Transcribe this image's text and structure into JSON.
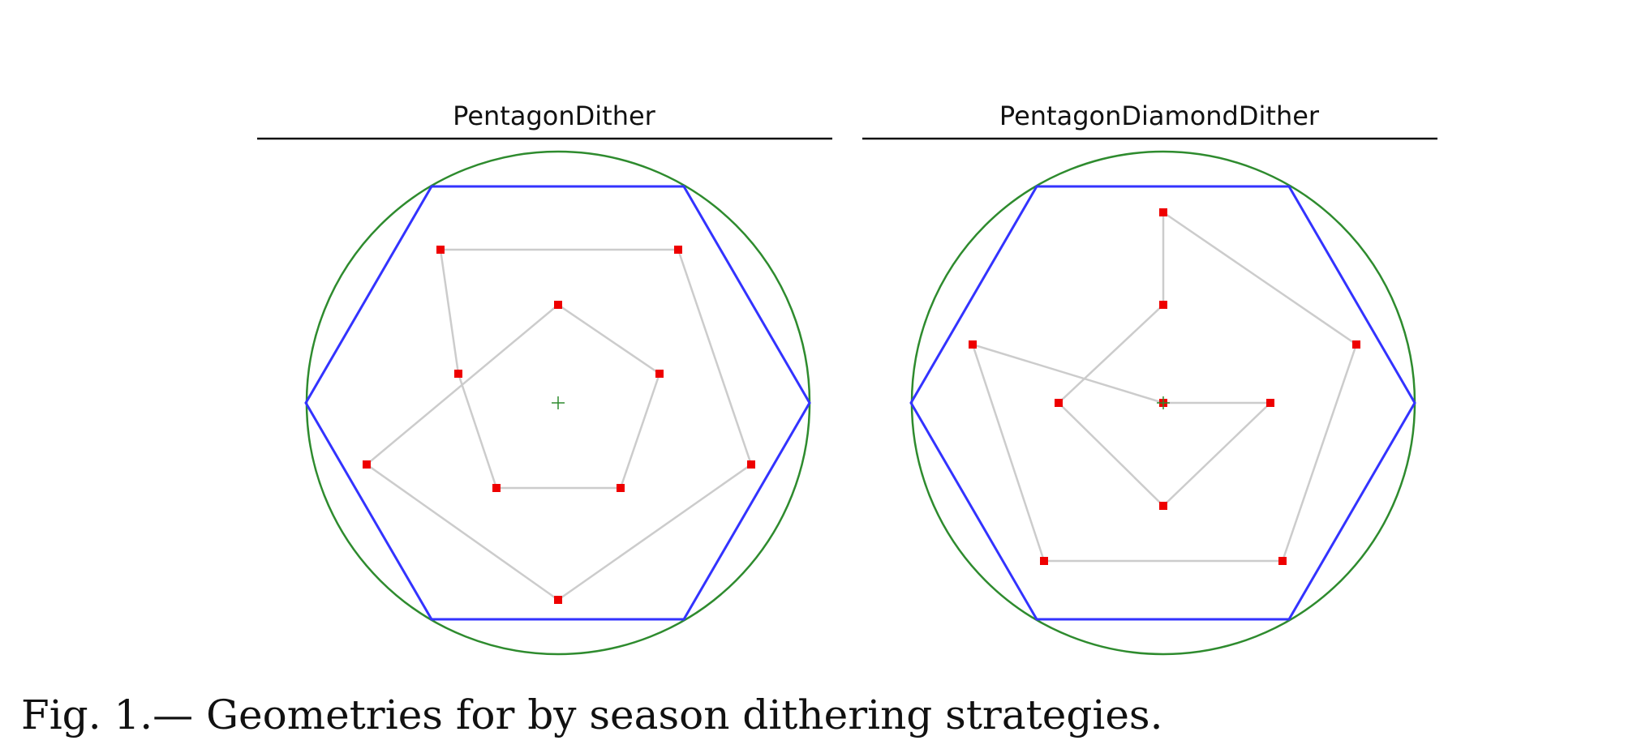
{
  "panels": [
    {
      "title": "PentagonDither"
    },
    {
      "title": "PentagonDiamondDither"
    }
  ],
  "caption": "Fig.  1.— Geometries for by season dithering strategies.",
  "colors": {
    "circle": "#2e8b2e",
    "hexagon": "#3333ff",
    "path": "#cccccc",
    "point": "#ee0000",
    "center": "#2e8b2e"
  }
}
